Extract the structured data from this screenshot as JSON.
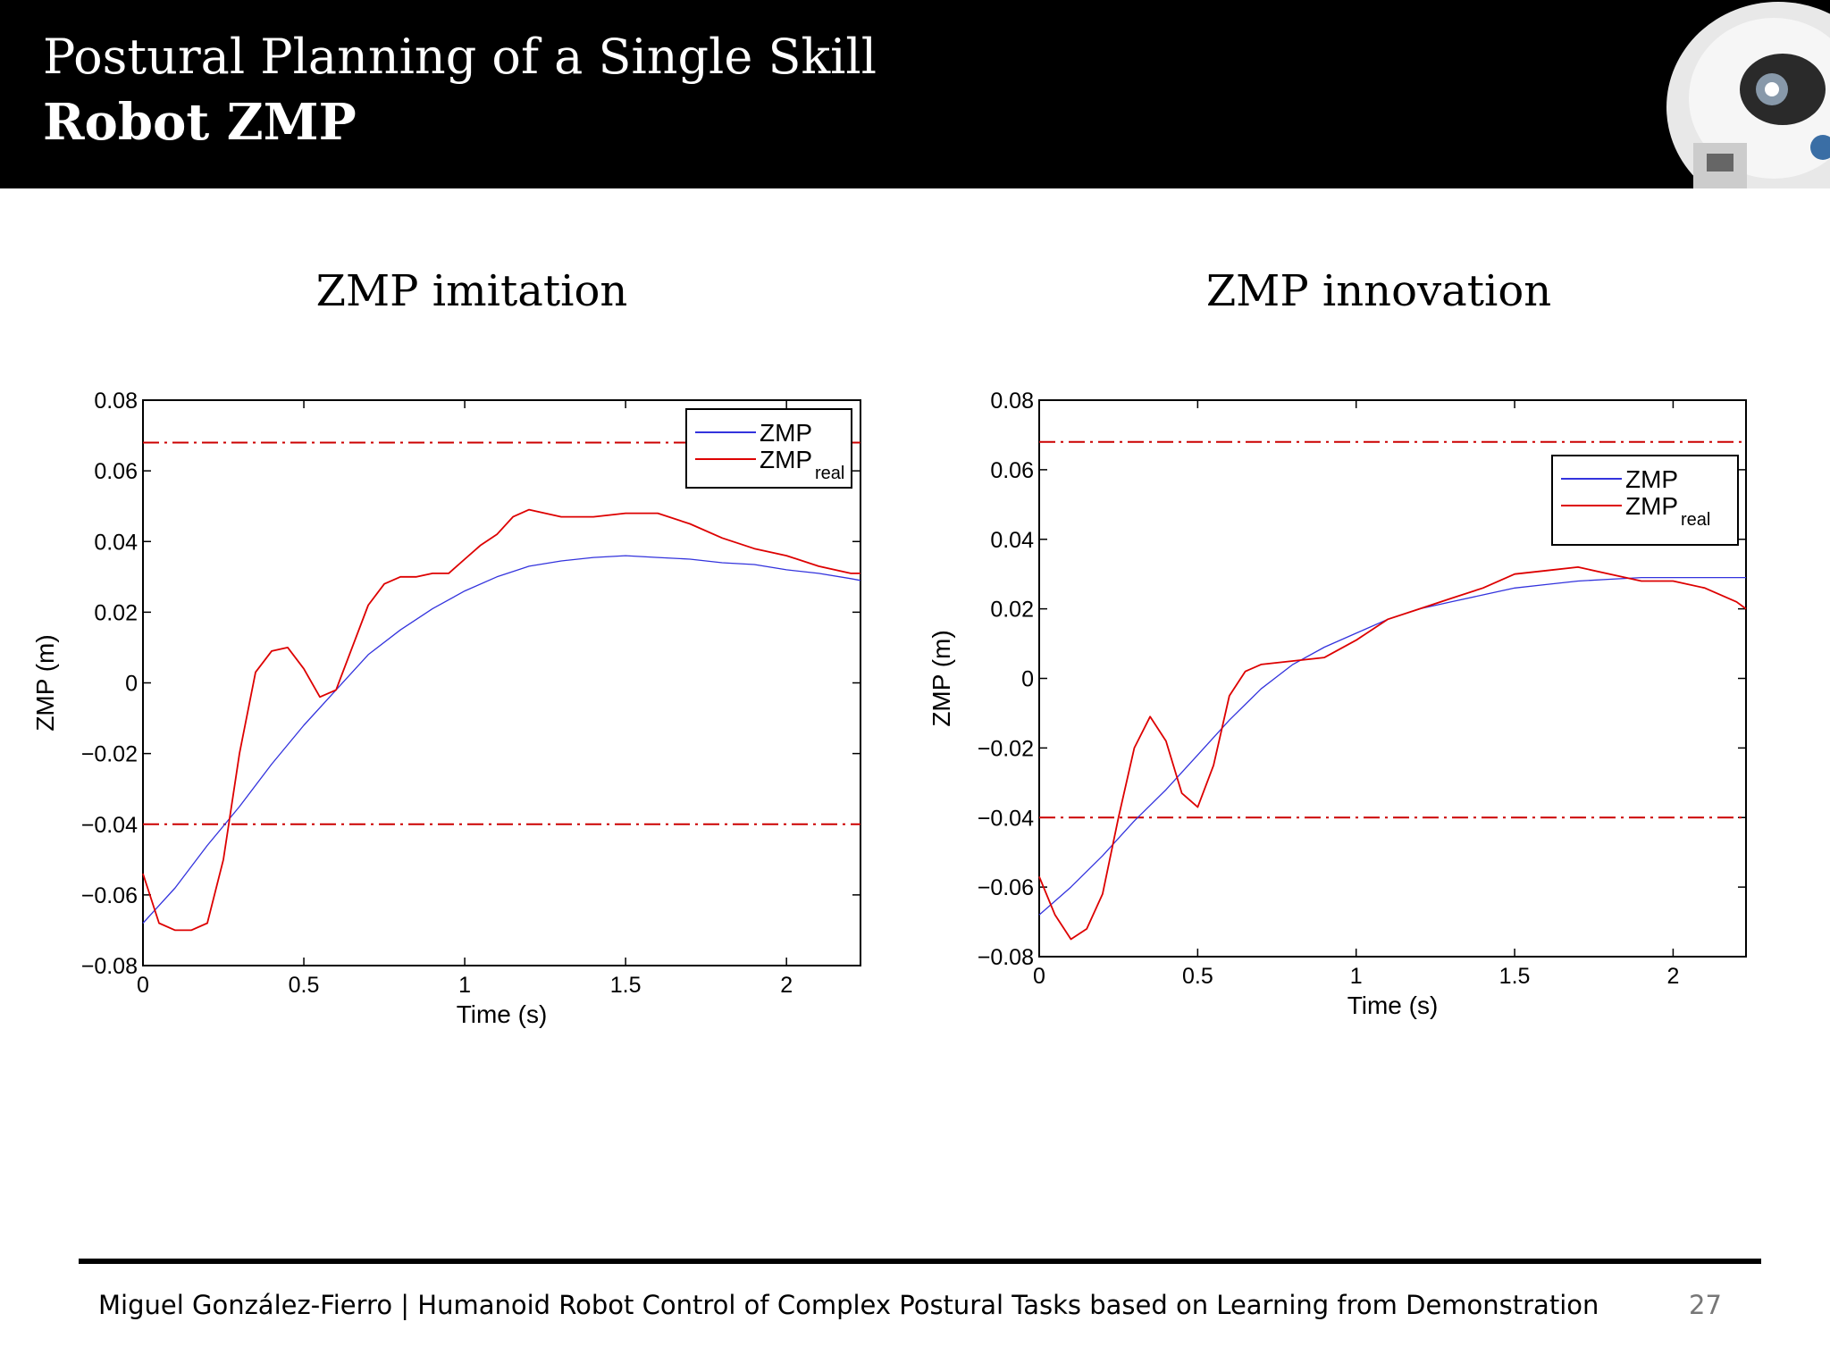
{
  "slide": {
    "title": "Postural Planning of a Single Skill",
    "subtitle": "Robot ZMP",
    "footer": "Miguel González-Fierro  |  Humanoid Robot Control of Complex Postural Tasks based on Learning from Demonstration",
    "page_number": "27",
    "logo": "humanoid-robot-head-image"
  },
  "chart_data": [
    {
      "type": "line",
      "heading": "ZMP imitation",
      "xlabel": "Time (s)",
      "ylabel": "ZMP (m)",
      "xlim": [
        0,
        2.23
      ],
      "ylim": [
        -0.08,
        0.08
      ],
      "xticks": [
        0,
        0.5,
        1,
        1.5,
        2
      ],
      "xtick_labels": [
        "0",
        "0.5",
        "1",
        "1.5",
        "2"
      ],
      "yticks": [
        0.08,
        0.06,
        0.04,
        0.02,
        0,
        -0.02,
        -0.04,
        -0.06,
        -0.08
      ],
      "ytick_labels": [
        "0.08",
        "0.06",
        "0.04",
        "0.02",
        "0",
        "−0.02",
        "−0.04",
        "−0.06",
        "−0.08"
      ],
      "grid": false,
      "legend_position": "top-right",
      "legend": [
        {
          "name": "ZMP",
          "subscript": "",
          "color": "#3333dd"
        },
        {
          "name": "ZMP",
          "subscript": "real",
          "color": "#dd0000"
        }
      ],
      "limits": [
        {
          "y": 0.068,
          "color": "#cc0000",
          "style": "dash-dot"
        },
        {
          "y": -0.04,
          "color": "#cc0000",
          "style": "dash-dot"
        }
      ],
      "series": [
        {
          "color": "#3333dd",
          "x": [
            0,
            0.1,
            0.2,
            0.3,
            0.4,
            0.5,
            0.6,
            0.7,
            0.8,
            0.9,
            1.0,
            1.1,
            1.2,
            1.3,
            1.4,
            1.5,
            1.6,
            1.7,
            1.8,
            1.9,
            2.0,
            2.1,
            2.2,
            2.23
          ],
          "values": [
            -0.068,
            -0.058,
            -0.046,
            -0.035,
            -0.023,
            -0.012,
            -0.002,
            0.008,
            0.015,
            0.021,
            0.026,
            0.03,
            0.033,
            0.0345,
            0.0355,
            0.036,
            0.0355,
            0.035,
            0.034,
            0.0335,
            0.032,
            0.031,
            0.0295,
            0.029
          ]
        },
        {
          "color": "#dd0000",
          "x": [
            0,
            0.05,
            0.1,
            0.15,
            0.2,
            0.25,
            0.3,
            0.35,
            0.4,
            0.45,
            0.5,
            0.55,
            0.6,
            0.65,
            0.7,
            0.75,
            0.8,
            0.85,
            0.9,
            0.95,
            1.0,
            1.05,
            1.1,
            1.15,
            1.2,
            1.3,
            1.4,
            1.5,
            1.6,
            1.7,
            1.8,
            1.9,
            2.0,
            2.1,
            2.2,
            2.23
          ],
          "values": [
            -0.054,
            -0.068,
            -0.07,
            -0.07,
            -0.068,
            -0.05,
            -0.02,
            0.003,
            0.009,
            0.01,
            0.004,
            -0.004,
            -0.002,
            0.01,
            0.022,
            0.028,
            0.03,
            0.03,
            0.031,
            0.031,
            0.035,
            0.039,
            0.042,
            0.047,
            0.049,
            0.047,
            0.047,
            0.048,
            0.048,
            0.045,
            0.041,
            0.038,
            0.036,
            0.033,
            0.031,
            0.031
          ]
        }
      ]
    },
    {
      "type": "line",
      "heading": "ZMP innovation",
      "xlabel": "Time (s)",
      "ylabel": "ZMP (m)",
      "xlim": [
        0,
        2.23
      ],
      "ylim": [
        -0.08,
        0.08
      ],
      "xticks": [
        0,
        0.5,
        1,
        1.5,
        2
      ],
      "xtick_labels": [
        "0",
        "0.5",
        "1",
        "1.5",
        "2"
      ],
      "yticks": [
        0.08,
        0.06,
        0.04,
        0.02,
        0,
        -0.02,
        -0.04,
        -0.06,
        -0.08
      ],
      "ytick_labels": [
        "0.08",
        "0.06",
        "0.04",
        "0.02",
        "0",
        "−0.02",
        "−0.04",
        "−0.06",
        "−0.08"
      ],
      "grid": false,
      "legend_position": "upper-right",
      "legend": [
        {
          "name": "ZMP",
          "subscript": "",
          "color": "#3333dd"
        },
        {
          "name": "ZMP",
          "subscript": "real",
          "color": "#dd0000"
        }
      ],
      "limits": [
        {
          "y": 0.068,
          "color": "#cc0000",
          "style": "dash-dot"
        },
        {
          "y": -0.04,
          "color": "#cc0000",
          "style": "dash-dot"
        }
      ],
      "series": [
        {
          "color": "#3333dd",
          "x": [
            0,
            0.1,
            0.2,
            0.3,
            0.4,
            0.5,
            0.6,
            0.7,
            0.8,
            0.9,
            1.0,
            1.1,
            1.2,
            1.3,
            1.4,
            1.5,
            1.6,
            1.7,
            1.8,
            1.9,
            2.0,
            2.1,
            2.2,
            2.23
          ],
          "values": [
            -0.068,
            -0.06,
            -0.051,
            -0.041,
            -0.032,
            -0.022,
            -0.012,
            -0.003,
            0.004,
            0.009,
            0.013,
            0.017,
            0.02,
            0.022,
            0.024,
            0.026,
            0.027,
            0.028,
            0.0285,
            0.029,
            0.029,
            0.029,
            0.029,
            0.029
          ]
        },
        {
          "color": "#dd0000",
          "x": [
            0,
            0.05,
            0.1,
            0.15,
            0.2,
            0.25,
            0.3,
            0.35,
            0.4,
            0.45,
            0.5,
            0.55,
            0.6,
            0.65,
            0.7,
            0.8,
            0.9,
            1.0,
            1.1,
            1.2,
            1.3,
            1.4,
            1.5,
            1.6,
            1.7,
            1.8,
            1.9,
            2.0,
            2.1,
            2.2,
            2.23
          ],
          "values": [
            -0.057,
            -0.068,
            -0.075,
            -0.072,
            -0.062,
            -0.04,
            -0.02,
            -0.011,
            -0.018,
            -0.033,
            -0.037,
            -0.025,
            -0.005,
            0.002,
            0.004,
            0.005,
            0.006,
            0.011,
            0.017,
            0.02,
            0.023,
            0.026,
            0.03,
            0.031,
            0.032,
            0.03,
            0.028,
            0.028,
            0.026,
            0.022,
            0.02
          ]
        }
      ]
    }
  ]
}
